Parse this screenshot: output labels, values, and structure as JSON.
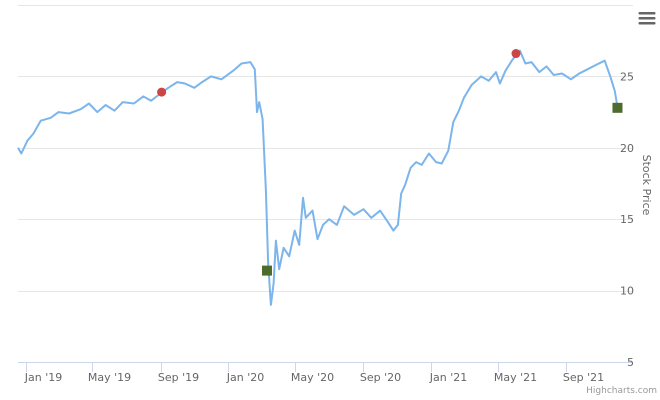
{
  "chart_data": {
    "type": "line",
    "yaxis": {
      "title": "Stock Price",
      "position": "right",
      "min": 5,
      "max": 30,
      "ticks": [
        5,
        10,
        15,
        20,
        25
      ]
    },
    "xaxis": {
      "min": "2018-12-18",
      "max": "2021-12-31",
      "ticks": [
        {
          "date": "2019-01-01",
          "label": "Jan '19"
        },
        {
          "date": "2019-05-01",
          "label": "May '19"
        },
        {
          "date": "2019-09-01",
          "label": "Sep '19"
        },
        {
          "date": "2020-01-01",
          "label": "Jan '20"
        },
        {
          "date": "2020-05-01",
          "label": "May '20"
        },
        {
          "date": "2020-09-01",
          "label": "Sep '20"
        },
        {
          "date": "2021-01-01",
          "label": "Jan '21"
        },
        {
          "date": "2021-05-01",
          "label": "May '21"
        },
        {
          "date": "2021-09-01",
          "label": "Sep '21"
        }
      ]
    },
    "grid": true,
    "series": [
      {
        "color": "#7cb5ec",
        "points": [
          [
            "2018-12-18",
            20.0
          ],
          [
            "2018-12-24",
            19.6
          ],
          [
            "2019-01-04",
            20.5
          ],
          [
            "2019-01-15",
            21.0
          ],
          [
            "2019-01-28",
            21.9
          ],
          [
            "2019-02-15",
            22.1
          ],
          [
            "2019-03-01",
            22.5
          ],
          [
            "2019-03-20",
            22.4
          ],
          [
            "2019-04-10",
            22.7
          ],
          [
            "2019-04-25",
            23.1
          ],
          [
            "2019-05-10",
            22.5
          ],
          [
            "2019-05-25",
            23.0
          ],
          [
            "2019-06-10",
            22.6
          ],
          [
            "2019-06-25",
            23.2
          ],
          [
            "2019-07-15",
            23.1
          ],
          [
            "2019-08-01",
            23.6
          ],
          [
            "2019-08-15",
            23.3
          ],
          [
            "2019-09-01",
            23.8
          ],
          [
            "2019-09-15",
            24.2
          ],
          [
            "2019-10-01",
            24.6
          ],
          [
            "2019-10-15",
            24.5
          ],
          [
            "2019-11-01",
            24.2
          ],
          [
            "2019-11-15",
            24.6
          ],
          [
            "2019-12-01",
            25.0
          ],
          [
            "2019-12-20",
            24.8
          ],
          [
            "2020-01-10",
            25.4
          ],
          [
            "2020-01-25",
            25.9
          ],
          [
            "2020-02-10",
            26.0
          ],
          [
            "2020-02-18",
            25.5
          ],
          [
            "2020-02-22",
            22.5
          ],
          [
            "2020-02-26",
            23.2
          ],
          [
            "2020-03-03",
            22.0
          ],
          [
            "2020-03-09",
            17.0
          ],
          [
            "2020-03-13",
            12.0
          ],
          [
            "2020-03-18",
            9.0
          ],
          [
            "2020-03-23",
            10.5
          ],
          [
            "2020-03-27",
            13.5
          ],
          [
            "2020-04-02",
            11.5
          ],
          [
            "2020-04-10",
            13.0
          ],
          [
            "2020-04-20",
            12.4
          ],
          [
            "2020-04-30",
            14.2
          ],
          [
            "2020-05-08",
            13.2
          ],
          [
            "2020-05-15",
            16.5
          ],
          [
            "2020-05-20",
            15.1
          ],
          [
            "2020-06-01",
            15.6
          ],
          [
            "2020-06-10",
            13.6
          ],
          [
            "2020-06-20",
            14.6
          ],
          [
            "2020-07-01",
            15.0
          ],
          [
            "2020-07-15",
            14.6
          ],
          [
            "2020-07-28",
            15.9
          ],
          [
            "2020-08-15",
            15.3
          ],
          [
            "2020-09-01",
            15.7
          ],
          [
            "2020-09-15",
            15.1
          ],
          [
            "2020-10-01",
            15.6
          ],
          [
            "2020-10-15",
            14.8
          ],
          [
            "2020-10-25",
            14.2
          ],
          [
            "2020-11-02",
            14.6
          ],
          [
            "2020-11-08",
            16.8
          ],
          [
            "2020-11-15",
            17.4
          ],
          [
            "2020-11-25",
            18.6
          ],
          [
            "2020-12-05",
            19.0
          ],
          [
            "2020-12-15",
            18.8
          ],
          [
            "2020-12-28",
            19.6
          ],
          [
            "2021-01-10",
            19.0
          ],
          [
            "2021-01-20",
            18.9
          ],
          [
            "2021-02-01",
            19.8
          ],
          [
            "2021-02-10",
            21.8
          ],
          [
            "2021-02-20",
            22.6
          ],
          [
            "2021-03-01",
            23.5
          ],
          [
            "2021-03-15",
            24.4
          ],
          [
            "2021-04-01",
            25.0
          ],
          [
            "2021-04-15",
            24.7
          ],
          [
            "2021-04-28",
            25.3
          ],
          [
            "2021-05-05",
            24.5
          ],
          [
            "2021-05-15",
            25.4
          ],
          [
            "2021-05-28",
            26.2
          ],
          [
            "2021-06-10",
            26.8
          ],
          [
            "2021-06-20",
            25.9
          ],
          [
            "2021-07-01",
            26.0
          ],
          [
            "2021-07-15",
            25.3
          ],
          [
            "2021-07-28",
            25.7
          ],
          [
            "2021-08-10",
            25.1
          ],
          [
            "2021-08-25",
            25.2
          ],
          [
            "2021-09-10",
            24.8
          ],
          [
            "2021-09-25",
            25.2
          ],
          [
            "2021-10-10",
            25.5
          ],
          [
            "2021-10-25",
            25.8
          ],
          [
            "2021-11-10",
            26.1
          ],
          [
            "2021-11-20",
            25.0
          ],
          [
            "2021-11-28",
            24.0
          ],
          [
            "2021-12-02",
            23.1
          ]
        ]
      }
    ],
    "markers": [
      {
        "kind": "circle",
        "date": "2019-09-03",
        "y": 23.9,
        "color": "#cc4444"
      },
      {
        "kind": "circle",
        "date": "2021-06-03",
        "y": 26.6,
        "color": "#cc4444"
      },
      {
        "kind": "square",
        "date": "2020-03-11",
        "y": 11.4,
        "color": "#4e6b2e"
      },
      {
        "kind": "square",
        "date": "2021-12-03",
        "y": 22.8,
        "color": "#4e6b2e"
      }
    ],
    "credits": "Highcharts.com"
  },
  "toolbar": {
    "menu_icon": "hamburger-menu-icon"
  }
}
